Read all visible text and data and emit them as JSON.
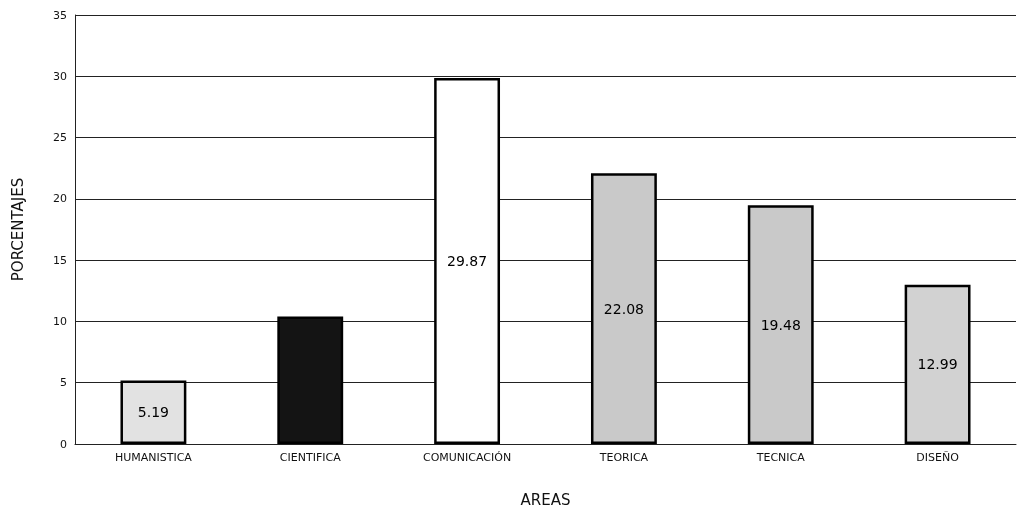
{
  "chart_data": {
    "type": "bar",
    "xlabel": "AREAS",
    "ylabel": "PORCENTAJES",
    "categories": [
      "HUMANISTICA",
      "CIENTIFICA",
      "COMUNICACIÓN",
      "TEORICA",
      "TECNICA",
      "DISEÑO"
    ],
    "values": [
      5.19,
      10.4,
      29.87,
      22.08,
      19.48,
      12.99
    ],
    "value_labels": [
      "5.19",
      null,
      "29.87",
      "22.08",
      "19.48",
      "12.99"
    ],
    "colors": [
      "#e2e2e2",
      "#141414",
      "#ffffff",
      "#c9c9c9",
      "#c9c9c9",
      "#d2d2d2"
    ],
    "ylim": [
      0,
      35
    ],
    "yticks": [
      0,
      5,
      10,
      15,
      20,
      25,
      30,
      35
    ],
    "grid": "y"
  }
}
